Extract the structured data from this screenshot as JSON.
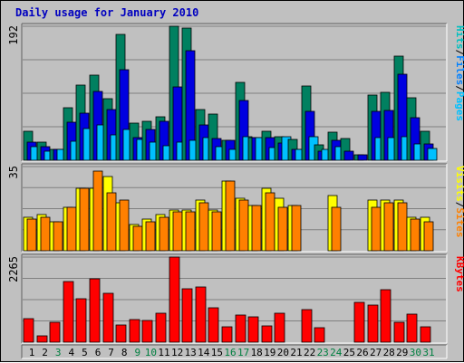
{
  "chart_data": {
    "type": "bar",
    "title": "Daily usage for January 2010",
    "categories": [
      "1",
      "2",
      "3",
      "4",
      "5",
      "6",
      "7",
      "8",
      "9",
      "10",
      "11",
      "12",
      "13",
      "14",
      "15",
      "16",
      "17",
      "18",
      "19",
      "20",
      "21",
      "22",
      "23",
      "24",
      "25",
      "26",
      "27",
      "28",
      "29",
      "30",
      "31"
    ],
    "weekend_days": [
      "3",
      "9",
      "10",
      "16",
      "17",
      "23",
      "24",
      "30",
      "31"
    ],
    "panels": [
      {
        "axis_max_label": "192",
        "ylim": [
          0,
          192
        ],
        "legend": [
          {
            "text": "Hits",
            "color": "#00c0c0"
          },
          {
            "text": "/",
            "color": "#000000"
          },
          {
            "text": "Files",
            "color": "#0080ff"
          },
          {
            "text": "/",
            "color": "#000000"
          },
          {
            "text": "Pages",
            "color": "#00c0ff"
          }
        ],
        "series": [
          {
            "key": "hits",
            "color": "#008060",
            "values": [
              42,
              26,
              15,
              75,
              108,
              122,
              88,
              180,
              53,
              56,
              62,
              192,
              190,
              72,
              66,
              29,
              111,
              33,
              41,
              34,
              30,
              107,
              22,
              40,
              31,
              8,
              94,
              97,
              149,
              89,
              41
            ]
          },
          {
            "key": "files",
            "color": "#0000e0",
            "values": [
              26,
              19,
              15,
              55,
              67,
              98,
              72,
              130,
              33,
              44,
              56,
              105,
              157,
              51,
              31,
              29,
              85,
              32,
              32,
              24,
              15,
              70,
              13,
              28,
              13,
              8,
              70,
              71,
              123,
              61,
              23
            ]
          },
          {
            "key": "pages",
            "color": "#00c0ff",
            "values": [
              20,
              13,
              15,
              27,
              45,
              51,
              36,
              44,
              30,
              26,
              21,
              26,
              29,
              32,
              20,
              15,
              34,
              32,
              18,
              34,
              16,
              34,
              15,
              19,
              0,
              0,
              32,
              32,
              34,
              23,
              17
            ]
          }
        ]
      },
      {
        "axis_max_label": "35",
        "ylim": [
          0,
          35
        ],
        "legend": [
          {
            "text": "Visits",
            "color": "#ffff00"
          },
          {
            "text": "/",
            "color": "#000000"
          },
          {
            "text": "Sites",
            "color": "#ff8000"
          }
        ],
        "series": [
          {
            "key": "visits",
            "color": "#ffff00",
            "values": [
              14,
              15,
              12,
              18,
              26,
              26,
              31,
              20,
              11,
              13,
              15,
              17,
              17,
              21,
              17,
              29,
              22,
              19,
              26,
              22,
              19,
              0,
              0,
              23,
              0,
              0,
              21,
              21,
              21,
              14,
              14
            ]
          },
          {
            "key": "sites",
            "color": "#ff8000",
            "values": [
              13,
              14,
              12,
              18,
              26,
              33,
              24,
              21,
              10,
              12,
              14,
              16,
              16,
              20,
              16,
              29,
              21,
              19,
              24,
              18,
              19,
              0,
              0,
              18,
              0,
              0,
              18,
              20,
              20,
              13,
              12
            ]
          }
        ]
      },
      {
        "axis_max_label": "2265",
        "ylim": [
          0,
          2265
        ],
        "legend": [
          {
            "text": "KBytes",
            "color": "#ff0000"
          }
        ],
        "series": [
          {
            "key": "kbytes",
            "color": "#ff0000",
            "values": [
              620,
              160,
              520,
              1625,
              1160,
              1680,
              1300,
              450,
              610,
              590,
              770,
              2265,
              1420,
              1460,
              920,
              420,
              720,
              680,
              440,
              780,
              0,
              870,
              380,
              0,
              0,
              1070,
              980,
              1390,
              540,
              750,
              400
            ]
          }
        ]
      }
    ]
  }
}
